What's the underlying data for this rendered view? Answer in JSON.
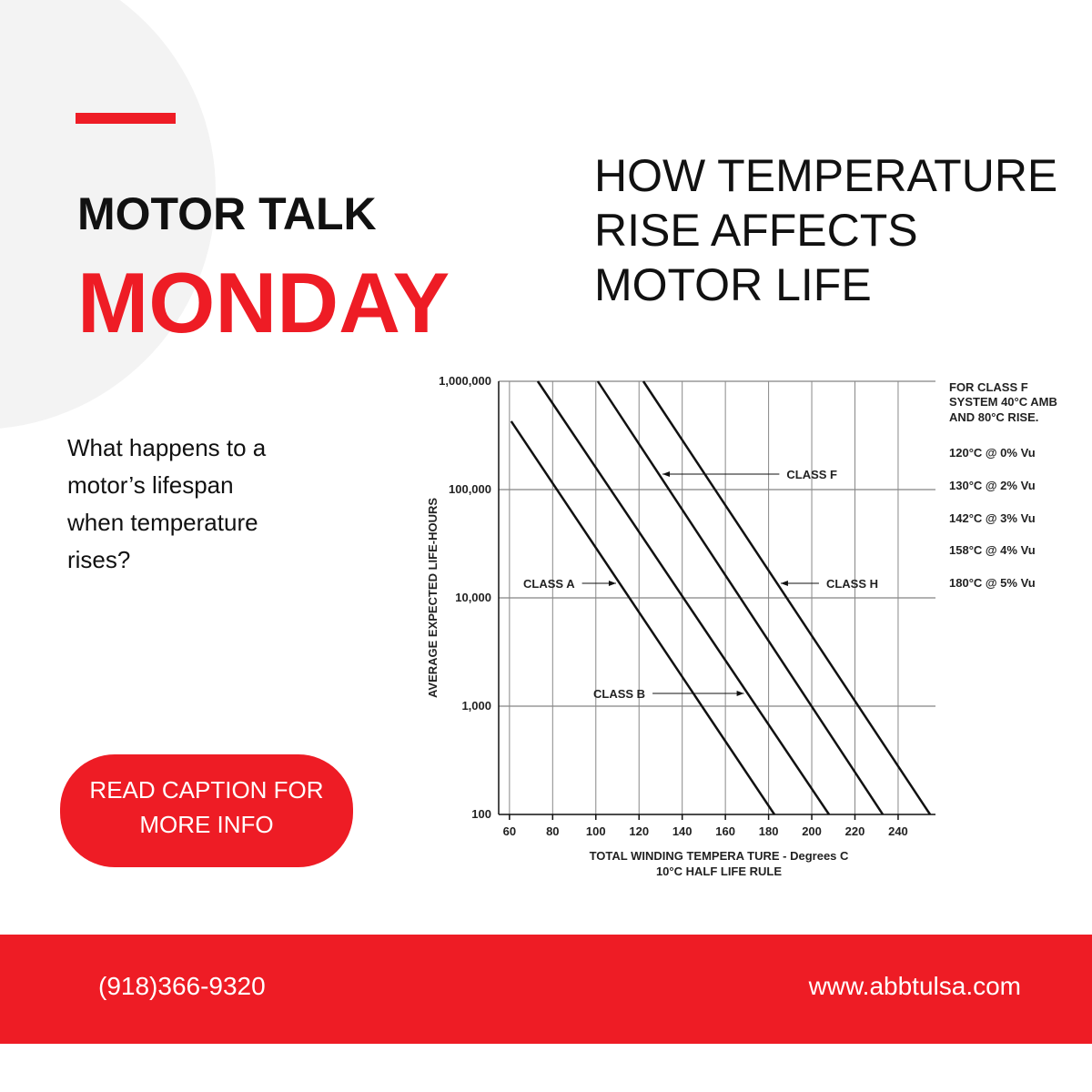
{
  "header": {
    "kicker": "MOTOR TALK",
    "title": "MONDAY",
    "headline": [
      "HOW TEMPERATURE",
      "RISE AFFECTS",
      "MOTOR LIFE"
    ]
  },
  "intro": [
    "What happens to a",
    "motor’s lifespan",
    "when temperature",
    "rises?"
  ],
  "button": [
    "READ CAPTION FOR",
    "MORE INFO"
  ],
  "chart_data": {
    "type": "line",
    "ylabel": "AVERAGE EXPECTED LIFE-HOURS",
    "xlabel": "TOTAL WINDING TEMPERA TURE - Degrees C",
    "xlabel_note": "10°C HALF LIFE RULE",
    "xlim": [
      55,
      257.3
    ],
    "ylim": [
      100,
      1000000
    ],
    "log_y": true,
    "grid": true,
    "xticks": [
      60,
      80,
      100,
      120,
      140,
      160,
      180,
      200,
      220,
      240
    ],
    "yticks": [
      {
        "value": 1000000,
        "label": "1,000,000"
      },
      {
        "value": 100000,
        "label": "100,000"
      },
      {
        "value": 10000,
        "label": "10,000"
      },
      {
        "value": 1000,
        "label": "1,000"
      },
      100
    ],
    "color": "#111111",
    "series": [
      {
        "name": "CLASS A",
        "x": [
          60.8,
          182.7
        ],
        "values": [
          427000,
          100
        ]
      },
      {
        "name": "CLASS B",
        "x": [
          73.1,
          208
        ],
        "values": [
          1000000,
          100
        ]
      },
      {
        "name": "CLASS F",
        "x": [
          100.9,
          232.9
        ],
        "values": [
          1000000,
          100
        ]
      },
      {
        "name": "CLASS H",
        "x": [
          122,
          254.8
        ],
        "values": [
          1000000,
          100
        ]
      }
    ],
    "notes": [
      "FOR CLASS F",
      "SYSTEM 40°C AMB",
      "AND 80°C RISE.",
      "120°C @ 0% Vu",
      "130°C @ 2% Vu",
      "142°C @ 3% Vu",
      "158°C @ 4% Vu",
      "180°C @ 5% Vu"
    ]
  },
  "footer": {
    "phone": "(918)366-9320",
    "website": "www.abbtulsa.com"
  }
}
